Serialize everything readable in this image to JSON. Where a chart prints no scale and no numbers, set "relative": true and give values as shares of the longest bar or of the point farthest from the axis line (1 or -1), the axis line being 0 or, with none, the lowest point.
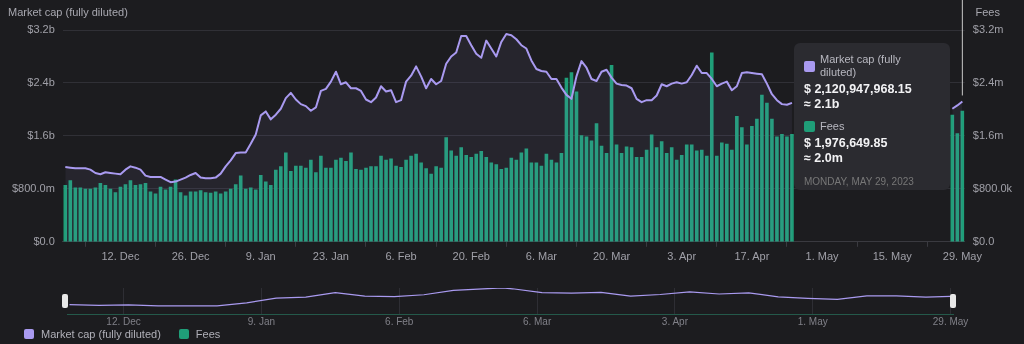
{
  "chart_data": [
    {
      "type": "bar",
      "ylabel": "Market cap (fully diluted)",
      "y2label": "Fees",
      "x": [
        "2022-12-01",
        "2022-12-02",
        "2022-12-03",
        "2022-12-04",
        "2022-12-05",
        "2022-12-06",
        "2022-12-07",
        "2022-12-08",
        "2022-12-09",
        "2022-12-10",
        "2022-12-11",
        "2022-12-12",
        "2022-12-13",
        "2022-12-14",
        "2022-12-15",
        "2022-12-16",
        "2022-12-17",
        "2022-12-18",
        "2022-12-19",
        "2022-12-20",
        "2022-12-21",
        "2022-12-22",
        "2022-12-23",
        "2022-12-24",
        "2022-12-25",
        "2022-12-26",
        "2022-12-27",
        "2022-12-28",
        "2022-12-29",
        "2022-12-30",
        "2022-12-31",
        "2023-01-01",
        "2023-01-02",
        "2023-01-03",
        "2023-01-04",
        "2023-01-05",
        "2023-01-06",
        "2023-01-07",
        "2023-01-08",
        "2023-01-09",
        "2023-01-10",
        "2023-01-11",
        "2023-01-12",
        "2023-01-13",
        "2023-01-14",
        "2023-01-15",
        "2023-01-16",
        "2023-01-17",
        "2023-01-18",
        "2023-01-19",
        "2023-01-20",
        "2023-01-21",
        "2023-01-22",
        "2023-01-23",
        "2023-01-24",
        "2023-01-25",
        "2023-01-26",
        "2023-01-27",
        "2023-01-28",
        "2023-01-29",
        "2023-01-30",
        "2023-01-31",
        "2023-02-01",
        "2023-02-02",
        "2023-02-03",
        "2023-02-04",
        "2023-02-05",
        "2023-02-06",
        "2023-02-07",
        "2023-02-08",
        "2023-02-09",
        "2023-02-10",
        "2023-02-11",
        "2023-02-12",
        "2023-02-13",
        "2023-02-14",
        "2023-02-15",
        "2023-02-16",
        "2023-02-17",
        "2023-02-18",
        "2023-02-19",
        "2023-02-20",
        "2023-02-21",
        "2023-02-22",
        "2023-02-23",
        "2023-02-24",
        "2023-02-25",
        "2023-02-26",
        "2023-02-27",
        "2023-02-28",
        "2023-03-01",
        "2023-03-02",
        "2023-03-03",
        "2023-03-04",
        "2023-03-05",
        "2023-03-06",
        "2023-03-07",
        "2023-03-08",
        "2023-03-09",
        "2023-03-10",
        "2023-03-11",
        "2023-03-12",
        "2023-03-13",
        "2023-03-14",
        "2023-03-15",
        "2023-03-16",
        "2023-03-17",
        "2023-03-18",
        "2023-03-19",
        "2023-03-20",
        "2023-03-21",
        "2023-03-22",
        "2023-03-23",
        "2023-03-24",
        "2023-03-25",
        "2023-03-26",
        "2023-03-27",
        "2023-03-28",
        "2023-03-29",
        "2023-03-30",
        "2023-03-31",
        "2023-04-01",
        "2023-04-02",
        "2023-04-03",
        "2023-04-04",
        "2023-04-05",
        "2023-04-06",
        "2023-04-07",
        "2023-04-08",
        "2023-04-09",
        "2023-04-10",
        "2023-04-11",
        "2023-04-12",
        "2023-04-13",
        "2023-04-14",
        "2023-04-15",
        "2023-04-16",
        "2023-04-17",
        "2023-04-18",
        "2023-04-19",
        "2023-04-20",
        "2023-04-21",
        "2023-04-22",
        "2023-04-23",
        "2023-04-24",
        "2023-04-25",
        "2023-04-26",
        "2023-04-27",
        "2023-04-28",
        "2023-04-29",
        "2023-04-30",
        "2023-05-01",
        "2023-05-02",
        "2023-05-03",
        "2023-05-04",
        "2023-05-05",
        "2023-05-06",
        "2023-05-07",
        "2023-05-08",
        "2023-05-09",
        "2023-05-10",
        "2023-05-11",
        "2023-05-12",
        "2023-05-13",
        "2023-05-14",
        "2023-05-15",
        "2023-05-16",
        "2023-05-17",
        "2023-05-18",
        "2023-05-19",
        "2023-05-20",
        "2023-05-21",
        "2023-05-22",
        "2023-05-23",
        "2023-05-24",
        "2023-05-25",
        "2023-05-26",
        "2023-05-27",
        "2023-05-28",
        "2023-05-29"
      ],
      "series": [
        {
          "name": "Market cap (fully diluted)",
          "type": "area",
          "axis": "y",
          "color": "#a99af0",
          "values": [
            1130000000,
            1120000000,
            1110000000,
            1110000000,
            1110000000,
            1090000000,
            1040000000,
            1020000000,
            1050000000,
            1040000000,
            1030000000,
            1020000000,
            1090000000,
            1140000000,
            1120000000,
            1090000000,
            1000000000,
            980000000,
            980000000,
            980000000,
            940000000,
            900000000,
            910000000,
            940000000,
            970000000,
            1010000000,
            1040000000,
            970000000,
            960000000,
            960000000,
            970000000,
            1030000000,
            1140000000,
            1230000000,
            1340000000,
            1350000000,
            1350000000,
            1480000000,
            1620000000,
            1910000000,
            1970000000,
            1850000000,
            1920000000,
            2010000000,
            2170000000,
            2250000000,
            2150000000,
            2080000000,
            2050000000,
            1980000000,
            2030000000,
            2280000000,
            2310000000,
            2420000000,
            2570000000,
            2380000000,
            2410000000,
            2320000000,
            2320000000,
            2280000000,
            2150000000,
            2110000000,
            2180000000,
            2350000000,
            2270000000,
            2290000000,
            2110000000,
            2140000000,
            2420000000,
            2510000000,
            2650000000,
            2500000000,
            2320000000,
            2460000000,
            2380000000,
            2430000000,
            2690000000,
            2800000000,
            2860000000,
            3110000000,
            3110000000,
            2970000000,
            2840000000,
            2780000000,
            3040000000,
            2920000000,
            2800000000,
            3020000000,
            3140000000,
            3120000000,
            3060000000,
            2970000000,
            2920000000,
            2740000000,
            2610000000,
            2580000000,
            2570000000,
            2460000000,
            2460000000,
            2330000000,
            2220000000,
            2160000000,
            2500000000,
            2730000000,
            2630000000,
            2460000000,
            2430000000,
            2570000000,
            2600000000,
            2480000000,
            2390000000,
            2370000000,
            2360000000,
            2320000000,
            2160000000,
            2110000000,
            2140000000,
            2140000000,
            2210000000,
            2380000000,
            2350000000,
            2390000000,
            2410000000,
            2390000000,
            2410000000,
            2520000000,
            2660000000,
            2550000000,
            2550000000,
            2460000000,
            2350000000,
            2390000000,
            2420000000,
            2290000000,
            2350000000,
            2550000000,
            2560000000,
            2550000000,
            2540000000,
            2530000000,
            2390000000,
            2230000000,
            2140000000,
            2080000000,
            2070000000,
            2100000000,
            null,
            null,
            null,
            null,
            null,
            null,
            null,
            null,
            null,
            null,
            null,
            null,
            null,
            null,
            null,
            null,
            null,
            null,
            null,
            null,
            null,
            null,
            null,
            null,
            null,
            null,
            null,
            null,
            null,
            null,
            null,
            2010000000,
            2060000000,
            2120000000
          ]
        },
        {
          "name": "Fees",
          "type": "bar",
          "axis": "y2",
          "color": "#1f9e78",
          "values": [
            860000,
            930000,
            820000,
            820000,
            800000,
            800000,
            820000,
            890000,
            860000,
            800000,
            750000,
            830000,
            870000,
            930000,
            860000,
            870000,
            890000,
            760000,
            730000,
            830000,
            790000,
            830000,
            940000,
            750000,
            700000,
            760000,
            760000,
            780000,
            750000,
            740000,
            760000,
            730000,
            760000,
            800000,
            870000,
            1000000,
            800000,
            820000,
            790000,
            1010000,
            910000,
            860000,
            1090000,
            1140000,
            1350000,
            1070000,
            1150000,
            1150000,
            1120000,
            1240000,
            1050000,
            1300000,
            1120000,
            1120000,
            1240000,
            1270000,
            1220000,
            1350000,
            1100000,
            1090000,
            1120000,
            1140000,
            1140000,
            1300000,
            1240000,
            1260000,
            1150000,
            1130000,
            1240000,
            1300000,
            1330000,
            1200000,
            1110000,
            1030000,
            1140000,
            1120000,
            1580000,
            1380000,
            1300000,
            1430000,
            1310000,
            1280000,
            1330000,
            1370000,
            1280000,
            1200000,
            1170000,
            1100000,
            1120000,
            1270000,
            1240000,
            1350000,
            1410000,
            1200000,
            1200000,
            1150000,
            1330000,
            1240000,
            1200000,
            1340000,
            2480000,
            2560000,
            2270000,
            1610000,
            1590000,
            1530000,
            1790000,
            1450000,
            1340000,
            2670000,
            1470000,
            1340000,
            1440000,
            1430000,
            1280000,
            1280000,
            1390000,
            1620000,
            1430000,
            1520000,
            1340000,
            1430000,
            1240000,
            1310000,
            1470000,
            1470000,
            1380000,
            1390000,
            1300000,
            2860000,
            1300000,
            1500000,
            1480000,
            1390000,
            1900000,
            1730000,
            1470000,
            1750000,
            1860000,
            2220000,
            2100000,
            1860000,
            1590000,
            1630000,
            1590000,
            1630000,
            null,
            null,
            null,
            null,
            null,
            null,
            null,
            null,
            null,
            null,
            null,
            null,
            null,
            null,
            null,
            null,
            null,
            null,
            null,
            null,
            null,
            null,
            null,
            null,
            null,
            null,
            null,
            null,
            null,
            null,
            null,
            1920000,
            1640000,
            1980000
          ]
        }
      ],
      "xlim": [
        "2022-11-30T12:00",
        "2023-05-29T12:00"
      ],
      "xticks": [
        {
          "value": "2022-12-12",
          "label": "12. Dec"
        },
        {
          "value": "2022-12-26",
          "label": "26. Dec"
        },
        {
          "value": "2023-01-09",
          "label": "9. Jan"
        },
        {
          "value": "2023-01-23",
          "label": "23. Jan"
        },
        {
          "value": "2023-02-06",
          "label": "6. Feb"
        },
        {
          "value": "2023-02-20",
          "label": "20. Feb"
        },
        {
          "value": "2023-03-06",
          "label": "6. Mar"
        },
        {
          "value": "2023-03-20",
          "label": "20. Mar"
        },
        {
          "value": "2023-04-03",
          "label": "3. Apr"
        },
        {
          "value": "2023-04-17",
          "label": "17. Apr"
        },
        {
          "value": "2023-05-01",
          "label": "1. May"
        },
        {
          "value": "2023-05-15",
          "label": "15. May"
        },
        {
          "value": "2023-05-29",
          "label": "29. May"
        }
      ],
      "ylim": [
        0,
        3200000000
      ],
      "yticks": [
        {
          "value": 0,
          "label": "$0.0"
        },
        {
          "value": 800000000,
          "label": "$800.0m"
        },
        {
          "value": 1600000000,
          "label": "$1.6b"
        },
        {
          "value": 2400000000,
          "label": "$2.4b"
        },
        {
          "value": 3200000000,
          "label": "$3.2b"
        }
      ],
      "y2lim": [
        0,
        3200000
      ],
      "y2ticks": [
        {
          "value": 0,
          "label": "$0.0"
        },
        {
          "value": 800000,
          "label": "$800.0k"
        },
        {
          "value": 1600000,
          "label": "$1.6m"
        },
        {
          "value": 2400000,
          "label": "$2.4m"
        },
        {
          "value": 3200000,
          "label": "$3.2m"
        }
      ],
      "ref_lines": [
        {
          "axis": "x",
          "value": "2023-05-29",
          "color": "#c8c8c8"
        }
      ],
      "annotations": [
        "$ 2,120,947,968.15",
        "≈ 2.1b",
        "$ 1,976,649.85",
        "≈ 2.0m",
        "MONDAY, MAY 29, 2023"
      ],
      "grid": "y",
      "legend": "bottom left",
      "marker": "none"
    },
    {
      "type": "line",
      "relative": true,
      "color": "#a99af0",
      "grid": "x",
      "x": [
        "2022-12-01",
        "2022-12-07",
        "2022-12-13",
        "2022-12-19",
        "2022-12-25",
        "2022-12-31",
        "2023-01-06",
        "2023-01-12",
        "2023-01-18",
        "2023-01-24",
        "2023-01-30",
        "2023-02-05",
        "2023-02-11",
        "2023-02-17",
        "2023-02-23",
        "2023-02-27",
        "2023-03-01",
        "2023-03-07",
        "2023-03-13",
        "2023-03-19",
        "2023-03-25",
        "2023-03-31",
        "2023-04-06",
        "2023-04-12",
        "2023-04-18",
        "2023-04-24",
        "2023-04-30",
        "2023-05-06",
        "2023-05-12",
        "2023-05-18",
        "2023-05-24",
        "2023-05-29"
      ],
      "values": [
        0.36,
        0.33,
        0.35,
        0.31,
        0.31,
        0.31,
        0.43,
        0.61,
        0.65,
        0.82,
        0.69,
        0.67,
        0.74,
        0.91,
        0.97,
        1,
        0.97,
        0.82,
        0.8,
        0.83,
        0.69,
        0.75,
        0.85,
        0.77,
        0.81,
        0.66,
        0.6,
        0.56,
        0.7,
        0.7,
        0.65,
        0.68
      ],
      "xlim": [
        "2022-11-30T12:00",
        "2023-05-29T12:00"
      ],
      "xticks": [
        {
          "value": "2022-12-12",
          "label": "12. Dec"
        },
        {
          "value": "2023-01-09",
          "label": "9. Jan"
        },
        {
          "value": "2023-02-06",
          "label": "6. Feb"
        },
        {
          "value": "2023-03-06",
          "label": "6. Mar"
        },
        {
          "value": "2023-04-03",
          "label": "3. Apr"
        },
        {
          "value": "2023-05-01",
          "label": "1. May"
        },
        {
          "value": "2023-05-29",
          "label": "29. May"
        }
      ]
    }
  ]
}
